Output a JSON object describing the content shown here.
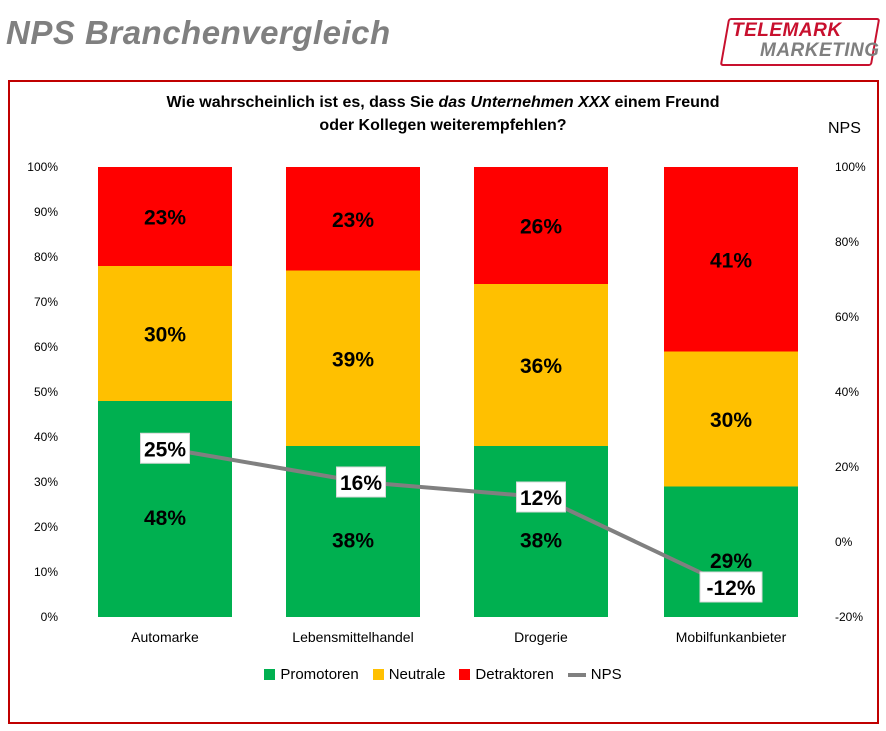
{
  "header": {
    "title": "NPS Branchenvergleich",
    "logo_line1": "TELEMARK",
    "logo_line2": "MARKETING"
  },
  "question": {
    "line1_pre": "Wie wahrscheinlich ist es, dass Sie ",
    "line1_italic": "das Unternehmen XXX",
    "line1_post": " einem Freund",
    "line2": "oder Kollegen weiterempfehlen?"
  },
  "colors": {
    "promotoren": "#00b050",
    "neutrale": "#ffc000",
    "detraktoren": "#ff0000",
    "nps": "#808080",
    "frame": "#c00000"
  },
  "chart_data": {
    "type": "bar",
    "stacked": true,
    "categories": [
      "Automarke",
      "Lebensmittelhandel",
      "Drogerie",
      "Mobilfunkanbieter"
    ],
    "series": [
      {
        "name": "Promotoren",
        "values": [
          48,
          38,
          38,
          29
        ],
        "labels": [
          "48%",
          "38%",
          "38%",
          "29%"
        ]
      },
      {
        "name": "Neutrale",
        "values": [
          30,
          39,
          36,
          30
        ],
        "labels": [
          "30%",
          "39%",
          "36%",
          "30%"
        ]
      },
      {
        "name": "Detraktoren",
        "values": [
          23,
          23,
          26,
          41
        ],
        "labels": [
          "23%",
          "23%",
          "26%",
          "41%"
        ]
      }
    ],
    "line_series": {
      "name": "NPS",
      "axis": "right",
      "values": [
        25,
        16,
        12,
        -12
      ],
      "labels": [
        "25%",
        "16%",
        "12%",
        "-12%"
      ]
    },
    "y_left": {
      "ylim": [
        0,
        100
      ],
      "ticks": [
        "0%",
        "10%",
        "20%",
        "30%",
        "40%",
        "50%",
        "60%",
        "70%",
        "80%",
        "90%",
        "100%"
      ]
    },
    "y_right": {
      "title": "NPS",
      "ylim": [
        -20,
        100
      ],
      "ticks": [
        "-20%",
        "0%",
        "20%",
        "40%",
        "60%",
        "80%",
        "100%"
      ]
    },
    "legend_position": "bottom",
    "grid": false
  }
}
